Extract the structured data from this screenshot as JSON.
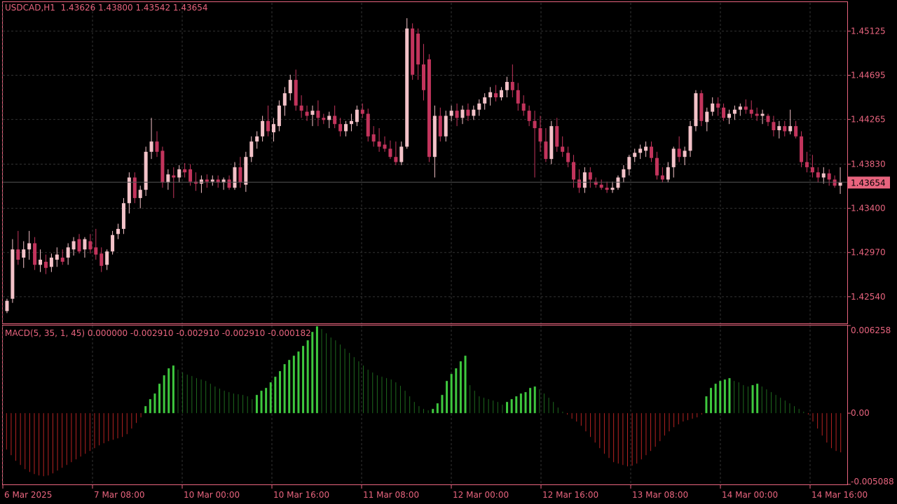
{
  "header": {
    "symbol_label": "USDCAD,H1",
    "ohlc_label": "1.43626 1.43800 1.43542 1.43654"
  },
  "indicator": {
    "label": "MACD(5, 35, 1, 45) 0.000000 -0.002910 -0.002910 -0.002910 -0.000182"
  },
  "colors": {
    "background": "#000000",
    "frame": "#e8647e",
    "axis_text": "#e8647e",
    "grid": "#333333",
    "bull_candle": "#f3c2c8",
    "bear_candle": "#c2345c",
    "hist_up_strong": "#3ec83e",
    "hist_up_weak": "#1e6a1e",
    "hist_down": "#b42222",
    "current_price_bg": "#e8647e"
  },
  "chart_data": [
    {
      "type": "candlestick",
      "symbol": "USDCAD",
      "timeframe": "H1",
      "title": "USDCAD,H1",
      "y_ticks": [
        "1.45125",
        "1.44695",
        "1.44265",
        "1.43830",
        "1.43400",
        "1.42970",
        "1.42540"
      ],
      "ylim": [
        1.4228,
        1.454
      ],
      "current_price": "1.43654",
      "x_ticks": [
        "6 Mar 2025",
        "7 Mar 08:00",
        "10 Mar 00:00",
        "10 Mar 16:00",
        "11 Mar 08:00",
        "12 Mar 00:00",
        "12 Mar 16:00",
        "13 Mar 08:00",
        "14 Mar 00:00",
        "14 Mar 16:00"
      ],
      "grid": true,
      "candles": [
        [
          1.424,
          1.4252,
          1.4238,
          1.425
        ],
        [
          1.4252,
          1.431,
          1.4248,
          1.43
        ],
        [
          1.43,
          1.4318,
          1.4285,
          1.429
        ],
        [
          1.4292,
          1.4308,
          1.4282,
          1.43
        ],
        [
          1.43,
          1.4318,
          1.429,
          1.4306
        ],
        [
          1.4306,
          1.4312,
          1.428,
          1.4285
        ],
        [
          1.4285,
          1.43,
          1.4278,
          1.429
        ],
        [
          1.4288,
          1.4295,
          1.4276,
          1.4282
        ],
        [
          1.4283,
          1.4296,
          1.4278,
          1.4292
        ],
        [
          1.429,
          1.4302,
          1.4283,
          1.4295
        ],
        [
          1.4292,
          1.43,
          1.4285,
          1.4288
        ],
        [
          1.4292,
          1.4306,
          1.4285,
          1.4302
        ],
        [
          1.43,
          1.4312,
          1.4294,
          1.4308
        ],
        [
          1.431,
          1.4315,
          1.4296,
          1.4298
        ],
        [
          1.43,
          1.4312,
          1.4292,
          1.431
        ],
        [
          1.4308,
          1.4315,
          1.4296,
          1.43
        ],
        [
          1.4302,
          1.432,
          1.429,
          1.4295
        ],
        [
          1.4296,
          1.4302,
          1.4278,
          1.4284
        ],
        [
          1.4285,
          1.43,
          1.428,
          1.4298
        ],
        [
          1.4298,
          1.4318,
          1.4295,
          1.4314
        ],
        [
          1.4315,
          1.4325,
          1.431,
          1.432
        ],
        [
          1.432,
          1.435,
          1.4315,
          1.4345
        ],
        [
          1.4345,
          1.4375,
          1.4335,
          1.437
        ],
        [
          1.437,
          1.4375,
          1.4345,
          1.435
        ],
        [
          1.435,
          1.4362,
          1.434,
          1.4358
        ],
        [
          1.4358,
          1.44,
          1.4352,
          1.4395
        ],
        [
          1.4395,
          1.4428,
          1.4388,
          1.4405
        ],
        [
          1.4405,
          1.4415,
          1.439,
          1.4395
        ],
        [
          1.4396,
          1.44,
          1.436,
          1.4365
        ],
        [
          1.4365,
          1.4378,
          1.4358,
          1.4373
        ],
        [
          1.4372,
          1.438,
          1.435,
          1.437
        ],
        [
          1.437,
          1.4382,
          1.4365,
          1.4378
        ],
        [
          1.4378,
          1.4384,
          1.437,
          1.4375
        ],
        [
          1.4378,
          1.4383,
          1.4362,
          1.4366
        ],
        [
          1.4366,
          1.4375,
          1.4357,
          1.4364
        ],
        [
          1.4364,
          1.4372,
          1.4355,
          1.4368
        ],
        [
          1.4368,
          1.4373,
          1.436,
          1.4366
        ],
        [
          1.4366,
          1.4372,
          1.4362,
          1.4368
        ],
        [
          1.4368,
          1.4372,
          1.436,
          1.4365
        ],
        [
          1.4365,
          1.437,
          1.4358,
          1.4368
        ],
        [
          1.4368,
          1.4372,
          1.4358,
          1.436
        ],
        [
          1.436,
          1.4385,
          1.4358,
          1.438
        ],
        [
          1.438,
          1.439,
          1.436,
          1.4365
        ],
        [
          1.4363,
          1.4395,
          1.4356,
          1.439
        ],
        [
          1.439,
          1.441,
          1.4385,
          1.4405
        ],
        [
          1.4405,
          1.4415,
          1.4398,
          1.441
        ],
        [
          1.441,
          1.443,
          1.4405,
          1.4425
        ],
        [
          1.4425,
          1.444,
          1.441,
          1.4415
        ],
        [
          1.4414,
          1.4428,
          1.4405,
          1.4422
        ],
        [
          1.442,
          1.4445,
          1.4415,
          1.444
        ],
        [
          1.444,
          1.4458,
          1.443,
          1.4452
        ],
        [
          1.4452,
          1.447,
          1.4445,
          1.4465
        ],
        [
          1.4465,
          1.4475,
          1.4435,
          1.444
        ],
        [
          1.444,
          1.445,
          1.4428,
          1.4435
        ],
        [
          1.4434,
          1.444,
          1.4425,
          1.443
        ],
        [
          1.4431,
          1.444,
          1.442,
          1.4435
        ],
        [
          1.4435,
          1.4445,
          1.442,
          1.4428
        ],
        [
          1.4428,
          1.4432,
          1.4422,
          1.4426
        ],
        [
          1.4426,
          1.4434,
          1.4418,
          1.443
        ],
        [
          1.443,
          1.444,
          1.4418,
          1.4422
        ],
        [
          1.4422,
          1.4428,
          1.441,
          1.4415
        ],
        [
          1.4415,
          1.4425,
          1.441,
          1.4422
        ],
        [
          1.4422,
          1.4432,
          1.4415,
          1.4425
        ],
        [
          1.4424,
          1.444,
          1.442,
          1.4436
        ],
        [
          1.4436,
          1.4442,
          1.4428,
          1.4432
        ],
        [
          1.4432,
          1.4437,
          1.4405,
          1.441
        ],
        [
          1.4412,
          1.442,
          1.44,
          1.4405
        ],
        [
          1.4405,
          1.4418,
          1.4395,
          1.44
        ],
        [
          1.4402,
          1.441,
          1.4395,
          1.4398
        ],
        [
          1.4398,
          1.4406,
          1.4388,
          1.439
        ],
        [
          1.439,
          1.4405,
          1.4382,
          1.4385
        ],
        [
          1.4385,
          1.4405,
          1.4382,
          1.44
        ],
        [
          1.44,
          1.4525,
          1.4398,
          1.4515
        ],
        [
          1.4515,
          1.452,
          1.4465,
          1.447
        ],
        [
          1.451,
          1.4515,
          1.4465,
          1.448
        ],
        [
          1.448,
          1.45,
          1.4445,
          1.4455
        ],
        [
          1.4485,
          1.449,
          1.4385,
          1.439
        ],
        [
          1.439,
          1.444,
          1.437,
          1.443
        ],
        [
          1.443,
          1.4438,
          1.4405,
          1.441
        ],
        [
          1.441,
          1.4435,
          1.4405,
          1.443
        ],
        [
          1.443,
          1.444,
          1.4425,
          1.4435
        ],
        [
          1.4435,
          1.4442,
          1.442,
          1.4428
        ],
        [
          1.4428,
          1.444,
          1.4422,
          1.4436
        ],
        [
          1.4436,
          1.4442,
          1.4425,
          1.443
        ],
        [
          1.443,
          1.444,
          1.4426,
          1.4436
        ],
        [
          1.4436,
          1.4446,
          1.443,
          1.4442
        ],
        [
          1.4442,
          1.4452,
          1.4436,
          1.4448
        ],
        [
          1.4448,
          1.4458,
          1.444,
          1.4453
        ],
        [
          1.4452,
          1.446,
          1.4444,
          1.4448
        ],
        [
          1.4448,
          1.4458,
          1.4445,
          1.4455
        ],
        [
          1.4455,
          1.4468,
          1.4448,
          1.4463
        ],
        [
          1.4463,
          1.448,
          1.4448,
          1.4455
        ],
        [
          1.4455,
          1.4462,
          1.4435,
          1.4442
        ],
        [
          1.4442,
          1.445,
          1.443,
          1.4435
        ],
        [
          1.4435,
          1.444,
          1.442,
          1.4425
        ],
        [
          1.4425,
          1.4435,
          1.437,
          1.4418
        ],
        [
          1.4418,
          1.443,
          1.4395,
          1.4405
        ],
        [
          1.4405,
          1.4418,
          1.4385,
          1.4388
        ],
        [
          1.4388,
          1.4425,
          1.4383,
          1.442
        ],
        [
          1.442,
          1.4428,
          1.4395,
          1.44
        ],
        [
          1.44,
          1.441,
          1.439,
          1.4395
        ],
        [
          1.4394,
          1.44,
          1.438,
          1.4385
        ],
        [
          1.4385,
          1.4392,
          1.436,
          1.4368
        ],
        [
          1.4368,
          1.4378,
          1.4355,
          1.436
        ],
        [
          1.436,
          1.438,
          1.4355,
          1.4375
        ],
        [
          1.4375,
          1.438,
          1.436,
          1.4368
        ],
        [
          1.4366,
          1.437,
          1.436,
          1.4363
        ],
        [
          1.4363,
          1.4368,
          1.4358,
          1.436
        ],
        [
          1.436,
          1.4366,
          1.4355,
          1.4358
        ],
        [
          1.4358,
          1.4366,
          1.4355,
          1.436
        ],
        [
          1.436,
          1.4372,
          1.4358,
          1.437
        ],
        [
          1.437,
          1.4382,
          1.4365,
          1.4378
        ],
        [
          1.4378,
          1.4392,
          1.4372,
          1.439
        ],
        [
          1.439,
          1.4398,
          1.4385,
          1.4394
        ],
        [
          1.4394,
          1.4402,
          1.4388,
          1.4398
        ],
        [
          1.4396,
          1.4405,
          1.439,
          1.44
        ],
        [
          1.44,
          1.4405,
          1.4385,
          1.4389
        ],
        [
          1.4389,
          1.4395,
          1.4368,
          1.4372
        ],
        [
          1.4372,
          1.438,
          1.4365,
          1.4368
        ],
        [
          1.4368,
          1.4385,
          1.4365,
          1.438
        ],
        [
          1.438,
          1.44,
          1.437,
          1.4398
        ],
        [
          1.4398,
          1.441,
          1.4385,
          1.439
        ],
        [
          1.439,
          1.44,
          1.4382,
          1.4396
        ],
        [
          1.4396,
          1.4425,
          1.439,
          1.442
        ],
        [
          1.442,
          1.4455,
          1.4415,
          1.4452
        ],
        [
          1.4452,
          1.4455,
          1.442,
          1.4425
        ],
        [
          1.4424,
          1.4438,
          1.4415,
          1.4434
        ],
        [
          1.4434,
          1.4448,
          1.443,
          1.4442
        ],
        [
          1.4442,
          1.4448,
          1.443,
          1.4438
        ],
        [
          1.4438,
          1.4442,
          1.4425,
          1.4428
        ],
        [
          1.4428,
          1.4436,
          1.4422,
          1.4432
        ],
        [
          1.4432,
          1.444,
          1.4426,
          1.4436
        ],
        [
          1.4436,
          1.4442,
          1.443,
          1.4439
        ],
        [
          1.4439,
          1.4446,
          1.4432,
          1.4436
        ],
        [
          1.4436,
          1.4445,
          1.4428,
          1.4432
        ],
        [
          1.4432,
          1.4438,
          1.4425,
          1.443
        ],
        [
          1.443,
          1.4436,
          1.4422,
          1.4432
        ],
        [
          1.443,
          1.4432,
          1.442,
          1.4424
        ],
        [
          1.4424,
          1.443,
          1.441,
          1.4416
        ],
        [
          1.4416,
          1.4425,
          1.4408,
          1.442
        ],
        [
          1.442,
          1.4425,
          1.441,
          1.4415
        ],
        [
          1.4415,
          1.4436,
          1.4412,
          1.442
        ],
        [
          1.442,
          1.4425,
          1.4408,
          1.441
        ],
        [
          1.441,
          1.4415,
          1.438,
          1.4385
        ],
        [
          1.4385,
          1.4395,
          1.4375,
          1.438
        ],
        [
          1.438,
          1.4392,
          1.437,
          1.4375
        ],
        [
          1.4375,
          1.438,
          1.4365,
          1.437
        ],
        [
          1.437,
          1.438,
          1.4364,
          1.4374
        ],
        [
          1.4374,
          1.4378,
          1.4362,
          1.4368
        ],
        [
          1.4368,
          1.4372,
          1.436,
          1.4362
        ],
        [
          1.4362,
          1.438,
          1.4354,
          1.4365
        ]
      ]
    },
    {
      "type": "bar",
      "title": "MACD(5, 35, 1, 45) 0.000000 -0.002910 -0.002910 -0.002910 -0.000182",
      "y_ticks": [
        "0.006258",
        "0.00",
        "-0.005088"
      ],
      "ylim": [
        -0.005088,
        0.006258
      ],
      "grid": true,
      "values": [
        -0.0026,
        -0.003,
        -0.0034,
        -0.0037,
        -0.004,
        -0.0042,
        -0.00435,
        -0.00445,
        -0.0045,
        -0.00445,
        -0.0043,
        -0.0041,
        -0.0039,
        -0.0037,
        -0.0035,
        -0.0033,
        -0.0031,
        -0.0029,
        -0.0027,
        -0.0025,
        -0.0023,
        -0.00215,
        -0.002,
        -0.0019,
        -0.0018,
        -0.0017,
        -0.0015,
        -0.0011,
        -0.0007,
        -0.0003,
        0.0005,
        0.001,
        0.0014,
        0.0021,
        0.0027,
        0.0032,
        0.0034,
        0.0031,
        0.0029,
        0.00275,
        0.00265,
        0.0025,
        0.0024,
        0.0023,
        0.0021,
        0.0019,
        0.00175,
        0.0016,
        0.0015,
        0.0014,
        0.00135,
        0.0013,
        0.0012,
        0.001,
        0.0013,
        0.0016,
        0.0018,
        0.0022,
        0.0026,
        0.003,
        0.0035,
        0.0038,
        0.0041,
        0.0044,
        0.0048,
        0.0052,
        0.0058,
        0.0062,
        0.006,
        0.0057,
        0.0054,
        0.0052,
        0.0049,
        0.0046,
        0.0043,
        0.004,
        0.0037,
        0.0034,
        0.0031,
        0.0029,
        0.0027,
        0.0026,
        0.0025,
        0.0024,
        0.0022,
        0.00195,
        0.0016,
        0.0012,
        0.0008,
        0.0005,
        0.0003,
        0.0002,
        0.0003,
        0.0007,
        0.0013,
        0.0023,
        0.0028,
        0.0032,
        0.0037,
        0.0041,
        0.002,
        0.0016,
        0.0012,
        0.0011,
        0.001,
        0.0009,
        0.0008,
        0.0006,
        0.0008,
        0.001,
        0.0012,
        0.0014,
        0.0015,
        0.0018,
        0.0019,
        0.0017,
        0.0014,
        0.0011,
        0.0008,
        0.0004,
        0.0001,
        -0.0001,
        -0.0004,
        -0.0006,
        -0.0009,
        -0.0013,
        -0.0017,
        -0.0021,
        -0.0025,
        -0.0029,
        -0.0032,
        -0.0035,
        -0.0036,
        -0.0037,
        -0.0038,
        -0.00375,
        -0.0036,
        -0.0033,
        -0.003,
        -0.0027,
        -0.0024,
        -0.002,
        -0.0016,
        -0.0013,
        -0.001,
        -0.0008,
        -0.0006,
        -0.0005,
        -0.0004,
        -0.0003,
        -0.0001,
        0.0012,
        0.0018,
        0.0021,
        0.0023,
        0.0024,
        0.0025,
        0.0023,
        0.0022,
        0.002,
        0.0019,
        0.002,
        0.0021,
        0.0019,
        0.0017,
        0.0015,
        0.0013,
        0.0011,
        0.0009,
        0.0007,
        0.0005,
        0.0003,
        0.0001,
        -0.0001,
        -0.0006,
        -0.0011,
        -0.0016,
        -0.0021,
        -0.0025,
        -0.0027,
        -0.0028
      ]
    }
  ]
}
